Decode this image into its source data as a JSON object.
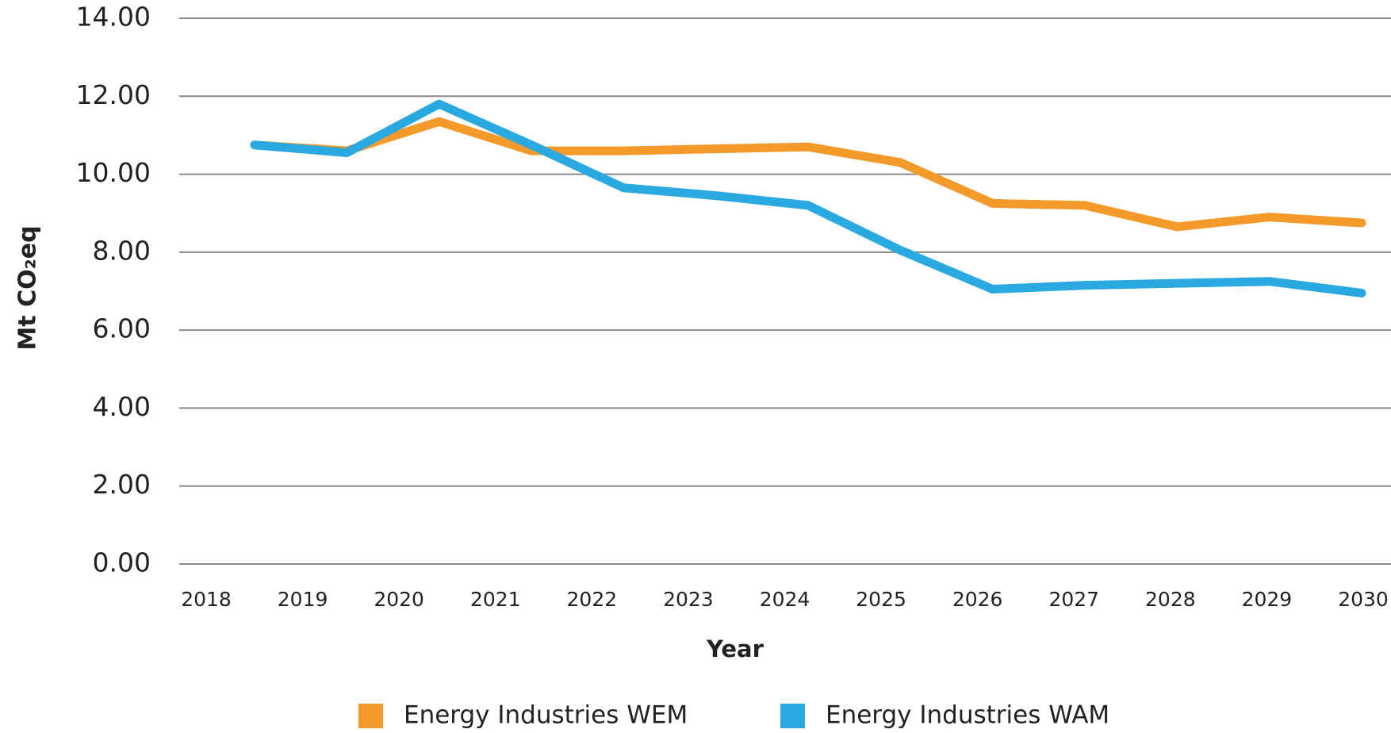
{
  "chart_data": {
    "type": "line",
    "y_label": "Mt CO₂eq",
    "x_label": "Year",
    "categories": [
      "2018",
      "2019",
      "2020",
      "2021",
      "2022",
      "2023",
      "2024",
      "2025",
      "2026",
      "2027",
      "2028",
      "2029",
      "2030"
    ],
    "series": [
      {
        "name": "Energy Industries WEM",
        "color": "#f39a2b",
        "values": [
          10.75,
          10.6,
          11.35,
          10.6,
          10.6,
          10.65,
          10.7,
          10.3,
          9.25,
          9.2,
          8.65,
          8.9,
          8.75
        ]
      },
      {
        "name": "Energy Industries WAM",
        "color": "#29a9e0",
        "values": [
          10.75,
          10.55,
          11.8,
          10.75,
          9.65,
          9.45,
          9.2,
          8.05,
          7.05,
          7.15,
          7.2,
          7.25,
          6.95
        ]
      }
    ],
    "ylim": [
      0,
      14
    ],
    "yticks": [
      {
        "value": 0,
        "label": "0.00"
      },
      {
        "value": 2,
        "label": "2.00"
      },
      {
        "value": 4,
        "label": "4.00"
      },
      {
        "value": 6,
        "label": "6.00"
      },
      {
        "value": 8,
        "label": "8.00"
      },
      {
        "value": 10,
        "label": "10.00"
      },
      {
        "value": 12,
        "label": "12.00"
      },
      {
        "value": 14,
        "label": "14.00"
      }
    ],
    "grid": true,
    "legend": "bottom"
  }
}
